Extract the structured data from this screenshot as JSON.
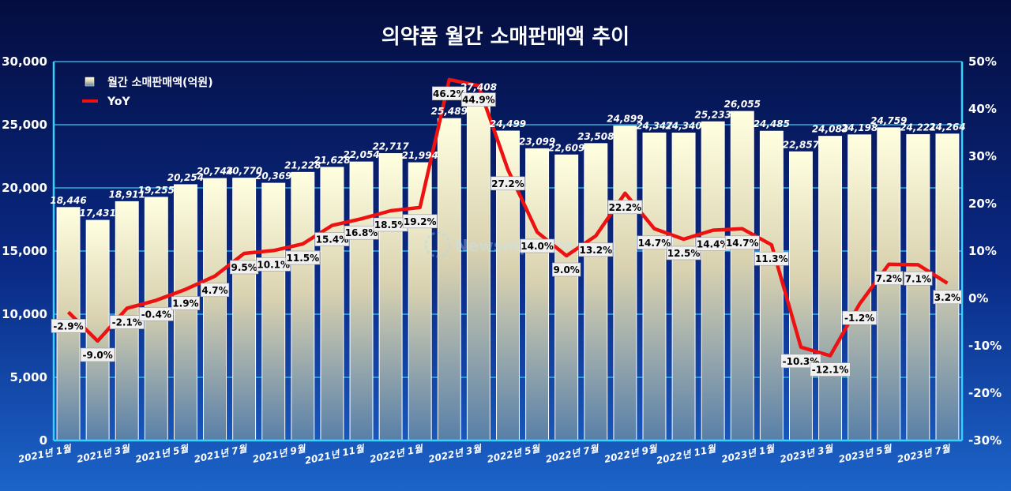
{
  "chart_data": {
    "type": "bar+line",
    "title": "의약품 월간 소매판매액 추이",
    "categories": [
      "2021년 1월",
      "2021년 2월",
      "2021년 3월",
      "2021년 4월",
      "2021년 5월",
      "2021년 6월",
      "2021년 7월",
      "2021년 8월",
      "2021년 9월",
      "2021년 10월",
      "2021년 11월",
      "2021년 12월",
      "2022년 1월",
      "2022년 2월",
      "2022년 3월",
      "2022년 4월",
      "2022년 5월",
      "2022년 6월",
      "2022년 7월",
      "2022년 8월",
      "2022년 9월",
      "2022년 10월",
      "2022년 11월",
      "2022년 12월",
      "2023년 1월",
      "2023년 2월",
      "2023년 3월",
      "2023년 4월",
      "2023년 5월",
      "2023년 6월",
      "2023년 7월"
    ],
    "x_tick_labels": [
      "2021년 1월",
      "2021년 3월",
      "2021년 5월",
      "2021년 7월",
      "2021년 9월",
      "2021년 11월",
      "2022년 1월",
      "2022년 3월",
      "2022년 5월",
      "2022년 7월",
      "2022년 9월",
      "2022년 11월",
      "2023년 1월",
      "2023년 3월",
      "2023년 5월",
      "2023년 7월"
    ],
    "series": [
      {
        "name": "월간 소매판매액(억원)",
        "type": "bar",
        "axis": "left",
        "values": [
          18446,
          17431,
          18911,
          19255,
          20254,
          20744,
          20770,
          20369,
          21228,
          21628,
          22054,
          22717,
          21994,
          25489,
          27408,
          24499,
          23099,
          22609,
          23508,
          24899,
          24347,
          24340,
          25233,
          26055,
          24485,
          22857,
          24083,
          24198,
          24759,
          24221,
          24264
        ],
        "value_labels": [
          "18,446",
          "17,431",
          "18,911",
          "19,255",
          "20,254",
          "20,744",
          "20,770",
          "20,369",
          "21,228",
          "21,628",
          "22,054",
          "22,717",
          "21,994",
          "25,489",
          "27,408",
          "24,499",
          "23,099",
          "22,609",
          "23,508",
          "24,899",
          "24,347",
          "24,340",
          "25,233",
          "26,055",
          "24,485",
          "22,857",
          "24,083",
          "24,198",
          "24,759",
          "24,221",
          "24,264"
        ]
      },
      {
        "name": "YoY",
        "type": "line",
        "axis": "right",
        "values": [
          -2.9,
          -9.0,
          -2.1,
          -0.4,
          1.9,
          4.7,
          9.5,
          10.1,
          11.5,
          15.4,
          16.8,
          18.5,
          19.2,
          46.2,
          44.9,
          27.2,
          14.0,
          9.0,
          13.2,
          22.2,
          14.7,
          12.5,
          14.4,
          14.7,
          11.3,
          -10.3,
          -12.1,
          -1.2,
          7.2,
          7.1,
          3.2
        ],
        "value_labels": [
          "-2.9%",
          "-9.0%",
          "-2.1%",
          "-0.4%",
          "1.9%",
          "4.7%",
          "9.5%",
          "10.1%",
          "11.5%",
          "15.4%",
          "16.8%",
          "18.5%",
          "19.2%",
          "46.2%",
          "44.9%",
          "27.2%",
          "14.0%",
          "9.0%",
          "13.2%",
          "22.2%",
          "14.7%",
          "12.5%",
          "14.4%",
          "14.7%",
          "11.3%",
          "-10.3%",
          "-12.1%",
          "-1.2%",
          "7.2%",
          "7.1%",
          "3.2%"
        ]
      }
    ],
    "y_left": {
      "min": 0,
      "max": 30000,
      "ticks": [
        "0",
        "5,000",
        "10,000",
        "15,000",
        "20,000",
        "25,000",
        "30,000"
      ]
    },
    "y_right": {
      "min": -30,
      "max": 50,
      "ticks": [
        "-30%",
        "-20%",
        "-10%",
        "0%",
        "10%",
        "20%",
        "30%",
        "40%",
        "50%"
      ]
    },
    "grid": true,
    "legend_position": "top-left",
    "colors": {
      "line": "#ee1111",
      "bar_top": "#ffffe0",
      "bar_bottom": "#5a80a8",
      "axis": "#33d2ff"
    }
  },
  "watermark": "Newsmp.com"
}
